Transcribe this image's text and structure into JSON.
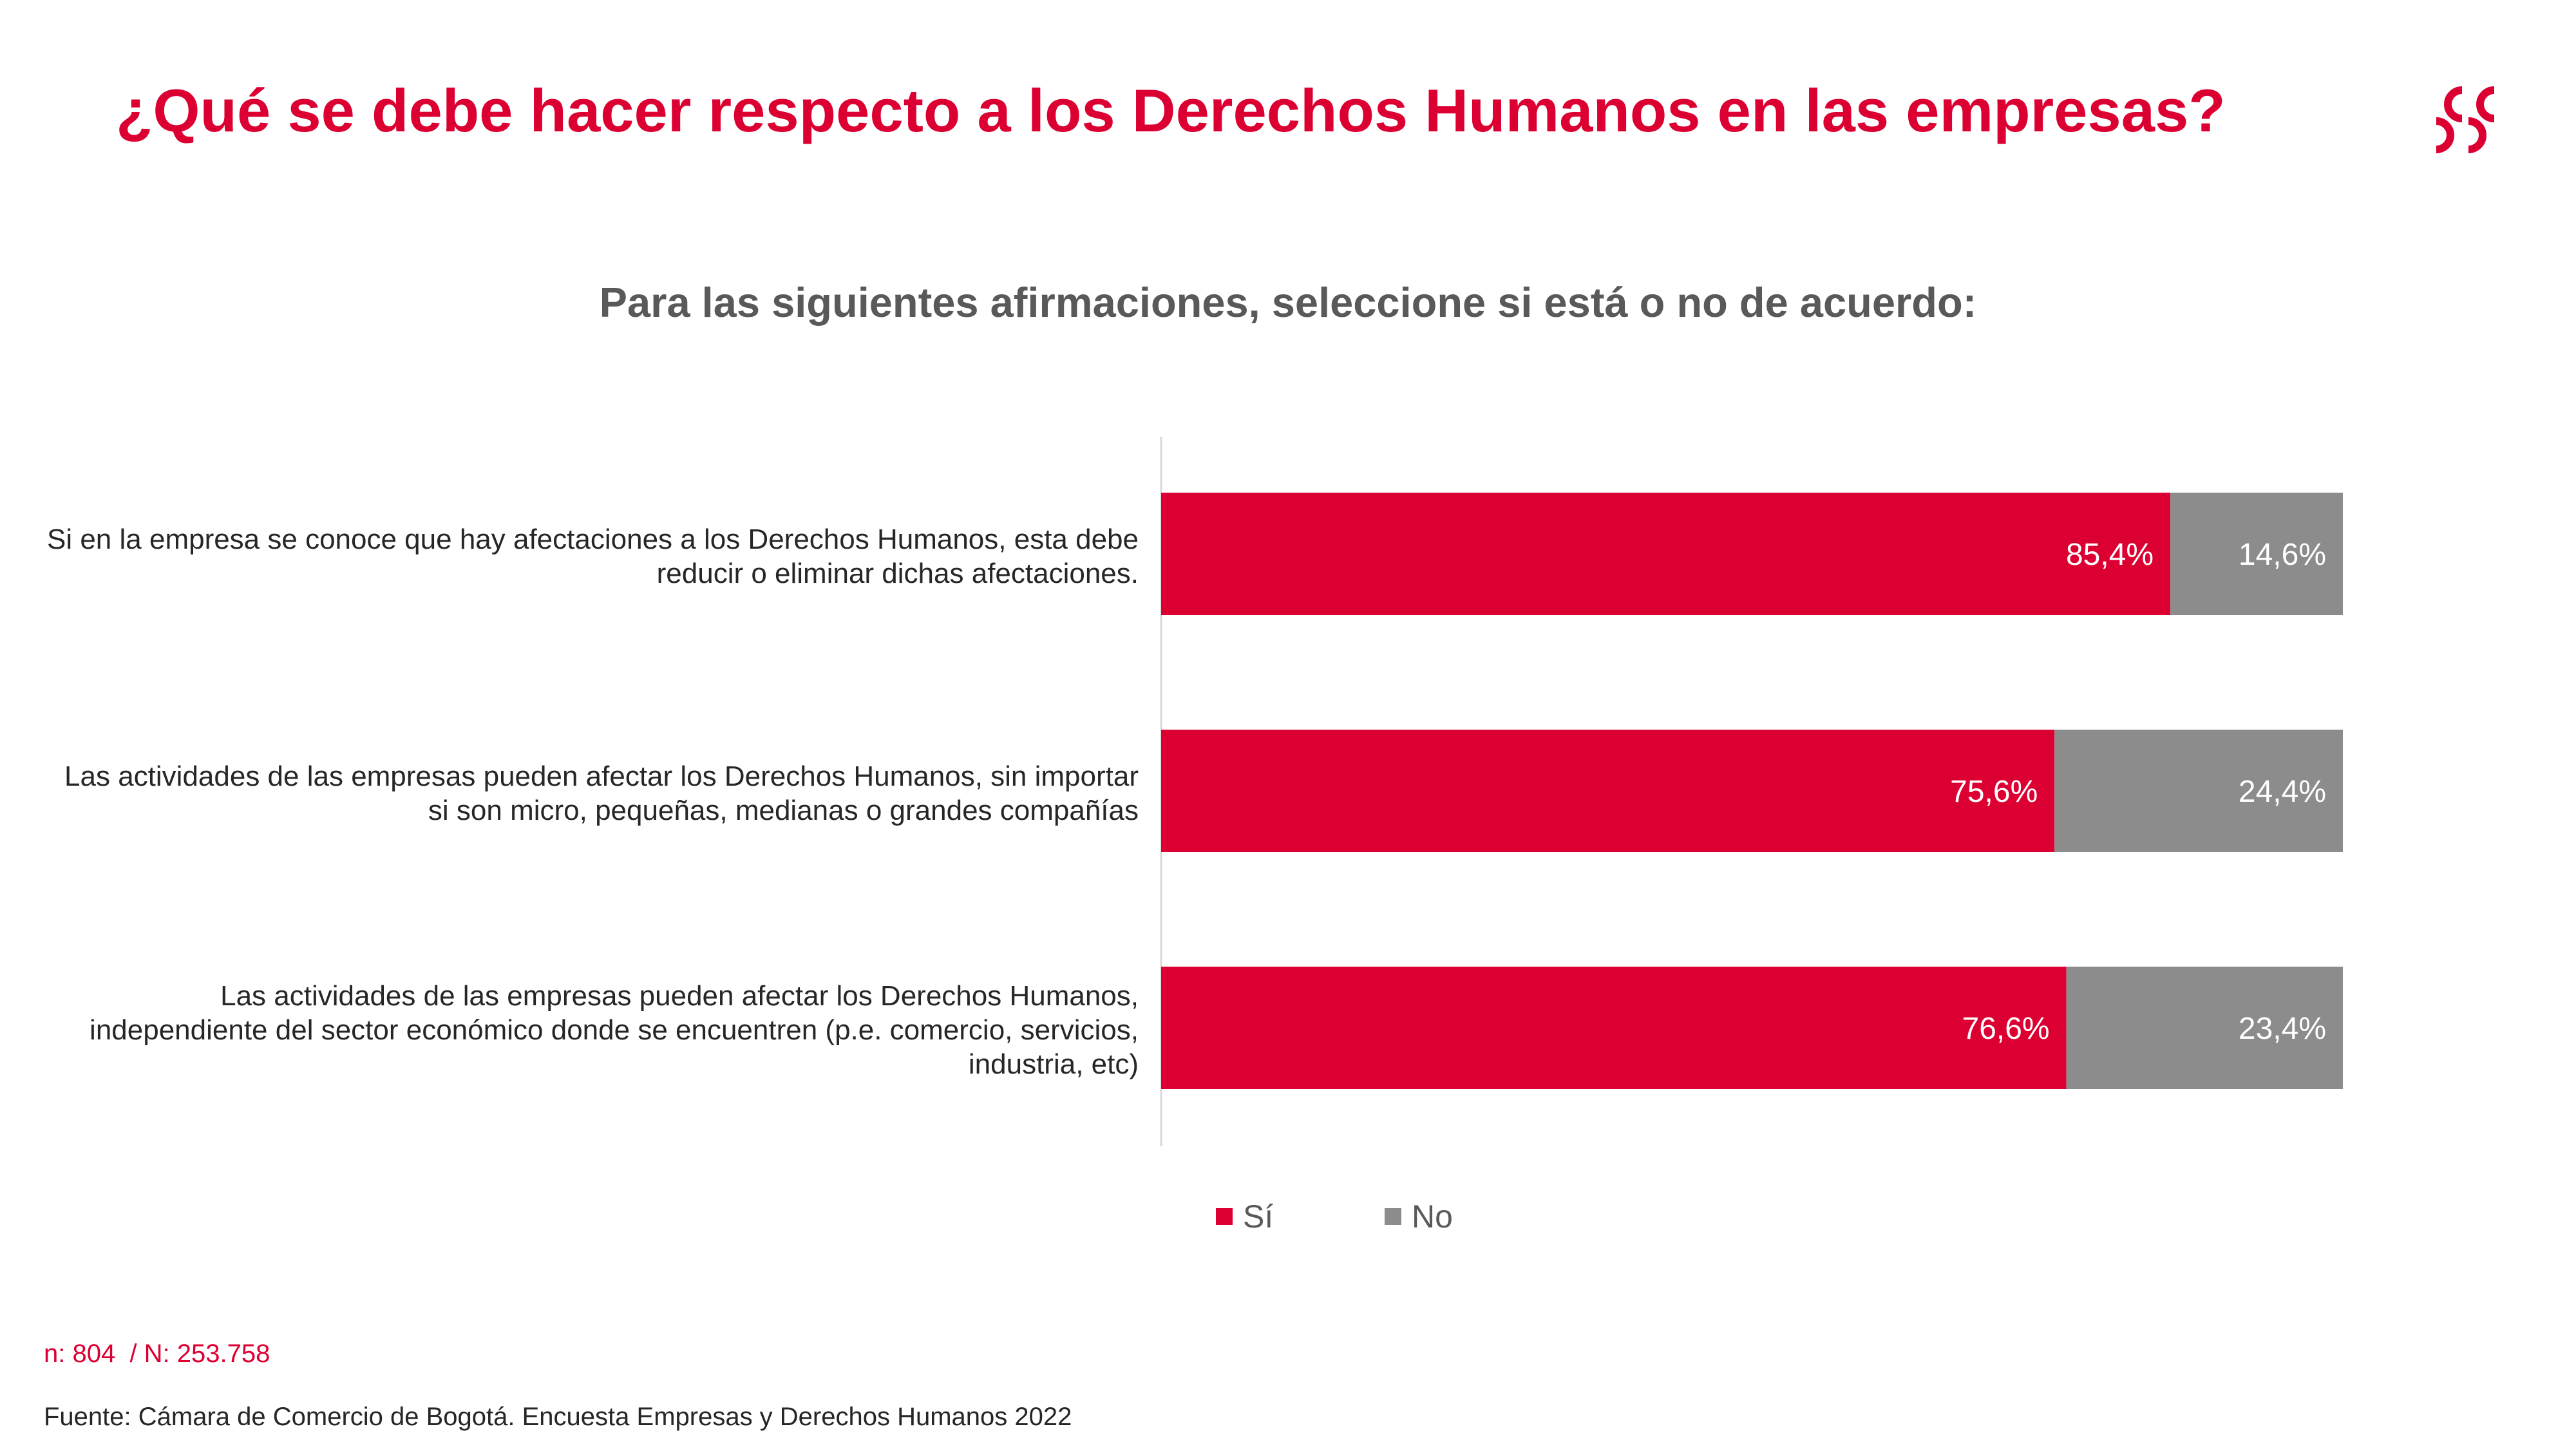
{
  "header": {
    "title": "¿Qué se debe hacer respecto a los Derechos Humanos en las empresas?",
    "logo_icon": "ccb-logo-icon"
  },
  "colors": {
    "accent": "#dc0032",
    "gray": "#8c8c8c",
    "text": "#262626",
    "subtitle": "#595959"
  },
  "chart_data": {
    "type": "bar",
    "orientation": "horizontal",
    "stacked": true,
    "percent_stacked": true,
    "title": "Para las siguientes afirmaciones, seleccione si está o no de acuerdo:",
    "xlabel": "",
    "ylabel": "",
    "xlim": [
      0,
      100
    ],
    "categories": [
      "Si en la empresa se conoce que hay afectaciones a los Derechos Humanos, esta debe reducir o eliminar dichas afectaciones.",
      "Las actividades de las empresas pueden afectar los Derechos Humanos, sin importar si son micro, pequeñas, medianas o grandes compañías",
      "Las actividades de las empresas pueden afectar los Derechos Humanos, independiente del sector económico donde se encuentren (p.e. comercio, servicios, industria, etc)"
    ],
    "series": [
      {
        "name": "Sí",
        "color": "#dc0032",
        "values": [
          85.4,
          75.6,
          76.6
        ],
        "labels": [
          "85,4%",
          "75,6%",
          "76,6%"
        ]
      },
      {
        "name": "No",
        "color": "#8c8c8c",
        "values": [
          14.6,
          24.4,
          23.4
        ],
        "labels": [
          "14,6%",
          "24,4%",
          "23,4%"
        ]
      }
    ],
    "legend_position": "bottom"
  },
  "footer": {
    "sample": "n: 804  / N: 253.758",
    "source": "Fuente: Cámara de Comercio de Bogotá. Encuesta Empresas y Derechos Humanos 2022"
  }
}
